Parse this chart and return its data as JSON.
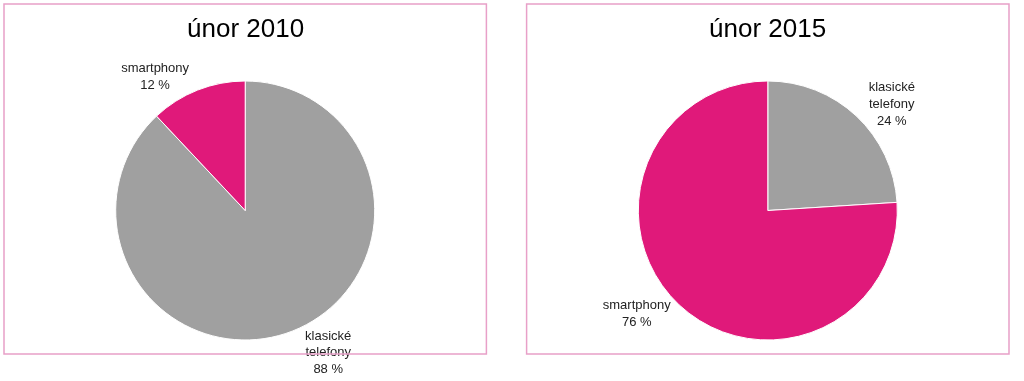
{
  "chart_data": [
    {
      "type": "pie",
      "title": "únor 2010",
      "categories": [
        "klasické telefony",
        "smartphony"
      ],
      "values": [
        88,
        12
      ],
      "colors": [
        "#a0a0a0",
        "#e0197a"
      ],
      "value_labels": [
        "88 %",
        "12 %"
      ]
    },
    {
      "type": "pie",
      "title": "únor 2015",
      "categories": [
        "klasické telefony",
        "smartphony"
      ],
      "values": [
        24,
        76
      ],
      "colors": [
        "#a0a0a0",
        "#e0197a"
      ],
      "value_labels": [
        "24 %",
        "76 %"
      ]
    }
  ]
}
